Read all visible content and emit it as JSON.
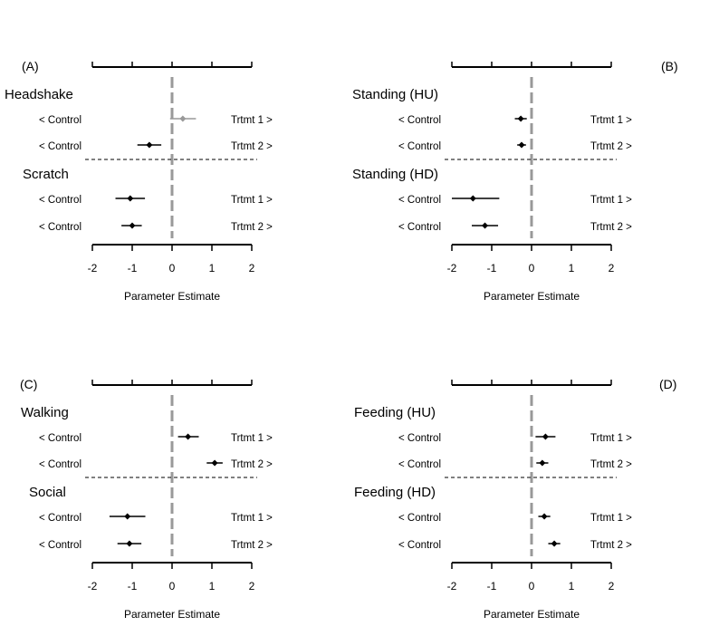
{
  "chart_data": [
    {
      "type": "forest",
      "panel_label": "(A)",
      "xlabel": "Parameter Estimate",
      "xlim": [
        -2,
        2
      ],
      "xticks": [
        "-2",
        "-1",
        "0",
        "1",
        "2"
      ],
      "groups": [
        {
          "title": "Headshake",
          "rows": [
            {
              "left_label": "< Control",
              "right_label": "Trtmt 1 >",
              "estimate": 0.27,
              "lower": -0.05,
              "upper": 0.6,
              "color": "#999999"
            },
            {
              "left_label": "< Control",
              "right_label": "Trtmt 2 >",
              "estimate": -0.57,
              "lower": -0.87,
              "upper": -0.27,
              "color": "#000000"
            }
          ]
        },
        {
          "title": "Scratch",
          "rows": [
            {
              "left_label": "< Control",
              "right_label": "Trtmt 1 >",
              "estimate": -1.05,
              "lower": -1.42,
              "upper": -0.68,
              "color": "#000000"
            },
            {
              "left_label": "< Control",
              "right_label": "Trtmt 2 >",
              "estimate": -1.0,
              "lower": -1.27,
              "upper": -0.76,
              "color": "#000000"
            }
          ]
        }
      ]
    },
    {
      "type": "forest",
      "panel_label": "(B)",
      "xlabel": "Parameter Estimate",
      "xlim": [
        -2,
        2
      ],
      "xticks": [
        "-2",
        "-1",
        "0",
        "1",
        "2"
      ],
      "groups": [
        {
          "title": "Standing (HU)",
          "rows": [
            {
              "left_label": "< Control",
              "right_label": "Trtmt 1 >",
              "estimate": -0.27,
              "lower": -0.42,
              "upper": -0.12,
              "color": "#000000"
            },
            {
              "left_label": "< Control",
              "right_label": "Trtmt 2 >",
              "estimate": -0.25,
              "lower": -0.36,
              "upper": -0.14,
              "color": "#000000"
            }
          ]
        },
        {
          "title": "Standing (HD)",
          "rows": [
            {
              "left_label": "< Control",
              "right_label": "Trtmt 1 >",
              "estimate": -1.47,
              "lower": -2.0,
              "upper": -0.81,
              "color": "#000000"
            },
            {
              "left_label": "< Control",
              "right_label": "Trtmt 2 >",
              "estimate": -1.17,
              "lower": -1.5,
              "upper": -0.84,
              "color": "#000000"
            }
          ]
        }
      ]
    },
    {
      "type": "forest",
      "panel_label": "(C)",
      "xlabel": "Parameter Estimate",
      "xlim": [
        -2,
        2
      ],
      "xticks": [
        "-2",
        "-1",
        "0",
        "1",
        "2"
      ],
      "groups": [
        {
          "title": "Walking",
          "rows": [
            {
              "left_label": "< Control",
              "right_label": "Trtmt 1 >",
              "estimate": 0.4,
              "lower": 0.15,
              "upper": 0.67,
              "color": "#000000"
            },
            {
              "left_label": "< Control",
              "right_label": "Trtmt 2 >",
              "estimate": 1.07,
              "lower": 0.87,
              "upper": 1.27,
              "color": "#000000"
            }
          ]
        },
        {
          "title": "Social",
          "rows": [
            {
              "left_label": "< Control",
              "right_label": "Trtmt 1 >",
              "estimate": -1.12,
              "lower": -1.57,
              "upper": -0.67,
              "color": "#000000"
            },
            {
              "left_label": "< Control",
              "right_label": "Trtmt 2 >",
              "estimate": -1.07,
              "lower": -1.37,
              "upper": -0.77,
              "color": "#000000"
            }
          ]
        }
      ]
    },
    {
      "type": "forest",
      "panel_label": "(D)",
      "xlabel": "Parameter Estimate",
      "xlim": [
        -2,
        2
      ],
      "xticks": [
        "-2",
        "-1",
        "0",
        "1",
        "2"
      ],
      "groups": [
        {
          "title": "Feeding (HU)",
          "rows": [
            {
              "left_label": "< Control",
              "right_label": "Trtmt 1 >",
              "estimate": 0.35,
              "lower": 0.1,
              "upper": 0.6,
              "color": "#000000"
            },
            {
              "left_label": "< Control",
              "right_label": "Trtmt 2 >",
              "estimate": 0.27,
              "lower": 0.12,
              "upper": 0.42,
              "color": "#000000"
            }
          ]
        },
        {
          "title": "Feeding (HD)",
          "rows": [
            {
              "left_label": "< Control",
              "right_label": "Trtmt 1 >",
              "estimate": 0.32,
              "lower": 0.17,
              "upper": 0.47,
              "color": "#000000"
            },
            {
              "left_label": "< Control",
              "right_label": "Trtmt 2 >",
              "estimate": 0.57,
              "lower": 0.42,
              "upper": 0.72,
              "color": "#000000"
            }
          ]
        }
      ]
    }
  ]
}
